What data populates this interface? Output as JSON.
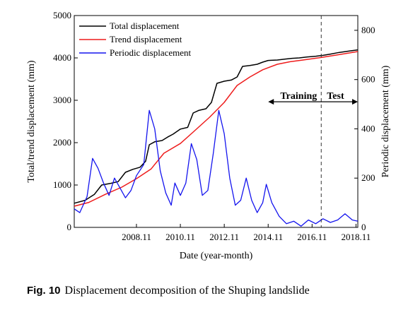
{
  "chart_data": {
    "type": "line",
    "xlabel": "Date (year-month)",
    "ylabel_left": "Total/trend displacement (mm)",
    "ylabel_right": "Periodic displacement (mm)",
    "x_range": [
      "2006-01",
      "2018-12"
    ],
    "ylim_left": [
      0,
      5000
    ],
    "ylim_right": [
      0,
      860
    ],
    "x_ticks": [
      "2008.11",
      "2010.11",
      "2012.11",
      "2014.11",
      "2016.11",
      "2018.11"
    ],
    "y_ticks_left": [
      "0",
      "1000",
      "2000",
      "3000",
      "4000",
      "5000"
    ],
    "y_ticks_right": [
      "0",
      "200",
      "400",
      "600",
      "800"
    ],
    "legend_position": "top-left",
    "grid": false,
    "colors": {
      "total": "#000000",
      "trend": "#ee1c1c",
      "periodic": "#1414ee"
    },
    "series": [
      {
        "name": "Total displacement",
        "axis": "left",
        "points": [
          [
            "2006-01",
            570
          ],
          [
            "2006-07",
            640
          ],
          [
            "2006-12",
            780
          ],
          [
            "2007-04",
            1000
          ],
          [
            "2007-09",
            1040
          ],
          [
            "2008-01",
            1080
          ],
          [
            "2008-05",
            1300
          ],
          [
            "2008-09",
            1370
          ],
          [
            "2009-01",
            1420
          ],
          [
            "2009-04",
            1560
          ],
          [
            "2009-06",
            1950
          ],
          [
            "2009-09",
            2020
          ],
          [
            "2010-01",
            2050
          ],
          [
            "2010-04",
            2130
          ],
          [
            "2010-07",
            2200
          ],
          [
            "2010-11",
            2320
          ],
          [
            "2011-03",
            2360
          ],
          [
            "2011-06",
            2700
          ],
          [
            "2011-09",
            2760
          ],
          [
            "2012-01",
            2800
          ],
          [
            "2012-04",
            2950
          ],
          [
            "2012-07",
            3400
          ],
          [
            "2012-11",
            3450
          ],
          [
            "2013-03",
            3480
          ],
          [
            "2013-06",
            3550
          ],
          [
            "2013-09",
            3800
          ],
          [
            "2014-01",
            3820
          ],
          [
            "2014-05",
            3850
          ],
          [
            "2014-08",
            3900
          ],
          [
            "2014-11",
            3940
          ],
          [
            "2015-04",
            3950
          ],
          [
            "2015-08",
            3970
          ],
          [
            "2015-12",
            3990
          ],
          [
            "2016-04",
            4000
          ],
          [
            "2016-08",
            4020
          ],
          [
            "2017-01",
            4040
          ],
          [
            "2017-05",
            4060
          ],
          [
            "2017-09",
            4090
          ],
          [
            "2018-02",
            4130
          ],
          [
            "2018-07",
            4160
          ],
          [
            "2018-12",
            4190
          ]
        ]
      },
      {
        "name": "Trend displacement",
        "axis": "left",
        "points": [
          [
            "2006-01",
            500
          ],
          [
            "2006-09",
            590
          ],
          [
            "2007-06",
            780
          ],
          [
            "2008-03",
            950
          ],
          [
            "2008-11",
            1150
          ],
          [
            "2009-07",
            1380
          ],
          [
            "2010-02",
            1750
          ],
          [
            "2010-11",
            1980
          ],
          [
            "2011-06",
            2250
          ],
          [
            "2012-03",
            2600
          ],
          [
            "2012-11",
            2950
          ],
          [
            "2013-06",
            3350
          ],
          [
            "2014-01",
            3550
          ],
          [
            "2014-08",
            3720
          ],
          [
            "2015-04",
            3850
          ],
          [
            "2015-11",
            3910
          ],
          [
            "2016-06",
            3950
          ],
          [
            "2017-04",
            4010
          ],
          [
            "2018-02",
            4080
          ],
          [
            "2018-12",
            4150
          ]
        ]
      },
      {
        "name": "Periodic displacement",
        "axis": "right",
        "points": [
          [
            "2006-01",
            75
          ],
          [
            "2006-04",
            60
          ],
          [
            "2006-08",
            125
          ],
          [
            "2006-11",
            280
          ],
          [
            "2007-02",
            240
          ],
          [
            "2007-05",
            180
          ],
          [
            "2007-08",
            130
          ],
          [
            "2007-11",
            200
          ],
          [
            "2008-02",
            160
          ],
          [
            "2008-05",
            120
          ],
          [
            "2008-08",
            150
          ],
          [
            "2008-11",
            210
          ],
          [
            "2009-03",
            255
          ],
          [
            "2009-06",
            475
          ],
          [
            "2009-09",
            400
          ],
          [
            "2009-12",
            230
          ],
          [
            "2010-03",
            140
          ],
          [
            "2010-06",
            90
          ],
          [
            "2010-08",
            180
          ],
          [
            "2010-11",
            130
          ],
          [
            "2011-02",
            180
          ],
          [
            "2011-05",
            340
          ],
          [
            "2011-08",
            275
          ],
          [
            "2011-11",
            130
          ],
          [
            "2012-02",
            150
          ],
          [
            "2012-05",
            300
          ],
          [
            "2012-08",
            475
          ],
          [
            "2012-11",
            380
          ],
          [
            "2013-02",
            200
          ],
          [
            "2013-05",
            90
          ],
          [
            "2013-08",
            110
          ],
          [
            "2013-11",
            200
          ],
          [
            "2014-02",
            110
          ],
          [
            "2014-05",
            60
          ],
          [
            "2014-08",
            100
          ],
          [
            "2014-10",
            175
          ],
          [
            "2015-01",
            100
          ],
          [
            "2015-05",
            45
          ],
          [
            "2015-09",
            15
          ],
          [
            "2016-01",
            25
          ],
          [
            "2016-05",
            5
          ],
          [
            "2016-09",
            30
          ],
          [
            "2017-01",
            15
          ],
          [
            "2017-05",
            35
          ],
          [
            "2017-09",
            20
          ],
          [
            "2018-01",
            30
          ],
          [
            "2018-05",
            55
          ],
          [
            "2018-09",
            30
          ],
          [
            "2018-12",
            25
          ]
        ]
      }
    ],
    "annotations": {
      "split_date": "2017-04",
      "training_label": "Training",
      "test_label": "Test",
      "training_range": [
        "2014-11",
        "2017-04"
      ],
      "test_range": [
        "2017-04",
        "2018-12"
      ],
      "training_test_y_right": 510
    }
  },
  "caption": {
    "label": "Fig. 10",
    "text": "Displacement decomposition of the Shuping landslide"
  }
}
